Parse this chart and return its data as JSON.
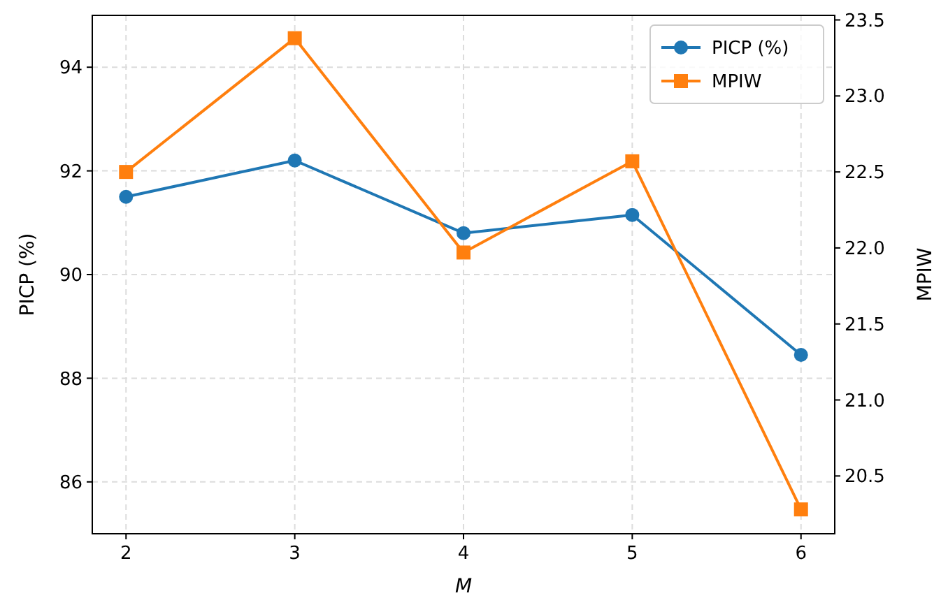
{
  "chart_data": {
    "type": "line",
    "xlabel": "M",
    "ylabel": "PICP (%)",
    "y2label": "MPIW",
    "x": [
      2,
      3,
      4,
      5,
      6
    ],
    "series": [
      {
        "name": "PICP (%)",
        "color": "#1f77b4",
        "marker": "circle",
        "values": [
          91.5,
          92.2,
          90.8,
          91.15,
          88.45
        ]
      },
      {
        "name": "MPIW",
        "color": "#ff7f0e",
        "marker": "square",
        "axis": "y2",
        "values": [
          22.5,
          23.38,
          21.97,
          22.57,
          20.28
        ]
      }
    ],
    "xlim": [
      1.8,
      6.2
    ],
    "xticks": [
      2,
      3,
      4,
      5,
      6
    ],
    "ylim": [
      85,
      95
    ],
    "yticks": [
      86,
      88,
      90,
      92,
      94
    ],
    "y2lim": [
      20.12,
      23.53
    ],
    "y2ticks": [
      20.5,
      {
        "value": 21,
        "label": "21.0"
      },
      21.5,
      {
        "value": 22,
        "label": "22.0"
      },
      22.5,
      {
        "value": 23,
        "label": "23.0"
      },
      23.5
    ],
    "grid": true,
    "legend": "top right",
    "line_style": "solid"
  }
}
